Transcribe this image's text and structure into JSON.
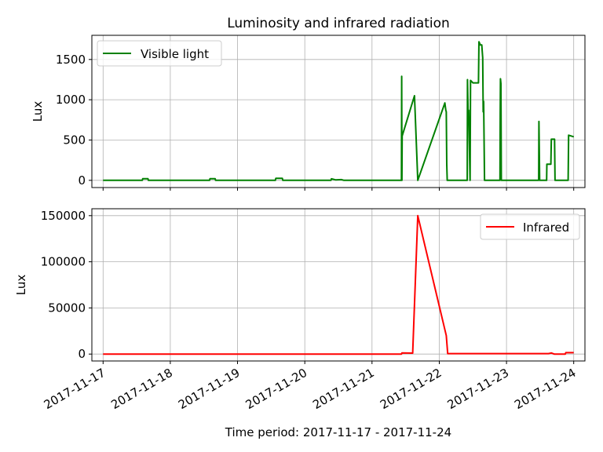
{
  "chart_data": [
    {
      "type": "line",
      "title": "Luminosity and infrared radiation",
      "ylabel": "Lux",
      "ylim": [
        -90,
        1800
      ],
      "yticks": [
        0,
        500,
        1000,
        1500
      ],
      "grid": true,
      "legend_position": "top-left",
      "series": [
        {
          "name": "Visible light",
          "color": "#008000",
          "points": [
            [
              "2017-11-17 00:00",
              0
            ],
            [
              "2017-11-17 14:00",
              0
            ],
            [
              "2017-11-17 14:10",
              20
            ],
            [
              "2017-11-17 16:00",
              20
            ],
            [
              "2017-11-17 16:10",
              0
            ],
            [
              "2017-11-18 14:00",
              0
            ],
            [
              "2017-11-18 14:10",
              20
            ],
            [
              "2017-11-18 16:00",
              20
            ],
            [
              "2017-11-18 16:10",
              0
            ],
            [
              "2017-11-19 13:30",
              0
            ],
            [
              "2017-11-19 13:40",
              25
            ],
            [
              "2017-11-19 16:00",
              25
            ],
            [
              "2017-11-19 16:10",
              0
            ],
            [
              "2017-11-20 09:20",
              0
            ],
            [
              "2017-11-20 09:30",
              18
            ],
            [
              "2017-11-20 11:00",
              5
            ],
            [
              "2017-11-20 13:00",
              8
            ],
            [
              "2017-11-20 14:00",
              0
            ],
            [
              "2017-11-21 10:30",
              0
            ],
            [
              "2017-11-21 10:35",
              1290
            ],
            [
              "2017-11-21 10:40",
              0
            ],
            [
              "2017-11-21 10:45",
              550
            ],
            [
              "2017-11-21 15:10",
              1050
            ],
            [
              "2017-11-21 16:20",
              0
            ],
            [
              "2017-11-22 02:00",
              960
            ],
            [
              "2017-11-22 02:20",
              870
            ],
            [
              "2017-11-22 02:30",
              850
            ],
            [
              "2017-11-22 02:40",
              200
            ],
            [
              "2017-11-22 02:50",
              0
            ],
            [
              "2017-11-22 10:00",
              0
            ],
            [
              "2017-11-22 10:05",
              1250
            ],
            [
              "2017-11-22 10:20",
              780
            ],
            [
              "2017-11-22 10:30",
              870
            ],
            [
              "2017-11-22 11:00",
              0
            ],
            [
              "2017-11-22 11:10",
              1240
            ],
            [
              "2017-11-22 12:00",
              1210
            ],
            [
              "2017-11-22 14:00",
              1210
            ],
            [
              "2017-11-22 14:10",
              1720
            ],
            [
              "2017-11-22 14:40",
              1680
            ],
            [
              "2017-11-22 15:10",
              1680
            ],
            [
              "2017-11-22 15:30",
              1520
            ],
            [
              "2017-11-22 15:40",
              850
            ],
            [
              "2017-11-22 15:50",
              980
            ],
            [
              "2017-11-22 16:10",
              0
            ],
            [
              "2017-11-22 21:40",
              0
            ],
            [
              "2017-11-22 21:45",
              830
            ],
            [
              "2017-11-22 21:50",
              1260
            ],
            [
              "2017-11-22 22:00",
              1200
            ],
            [
              "2017-11-22 22:10",
              0
            ],
            [
              "2017-11-23 11:30",
              0
            ],
            [
              "2017-11-23 11:35",
              730
            ],
            [
              "2017-11-23 11:50",
              0
            ],
            [
              "2017-11-23 14:20",
              0
            ],
            [
              "2017-11-23 14:25",
              200
            ],
            [
              "2017-11-23 15:50",
              200
            ],
            [
              "2017-11-23 16:00",
              510
            ],
            [
              "2017-11-23 17:10",
              510
            ],
            [
              "2017-11-23 17:20",
              0
            ],
            [
              "2017-11-23 22:00",
              0
            ],
            [
              "2017-11-23 22:10",
              560
            ],
            [
              "2017-11-24 00:00",
              540
            ]
          ]
        }
      ]
    },
    {
      "type": "line",
      "ylabel": "Lux",
      "ylim": [
        -7500,
        157500
      ],
      "yticks": [
        0,
        50000,
        100000,
        150000
      ],
      "grid": true,
      "legend_position": "top-right",
      "series": [
        {
          "name": "Infrared",
          "color": "#ff0000",
          "points": [
            [
              "2017-11-17 00:00",
              0
            ],
            [
              "2017-11-21 10:30",
              0
            ],
            [
              "2017-11-21 10:40",
              1200
            ],
            [
              "2017-11-21 14:30",
              1000
            ],
            [
              "2017-11-21 16:20",
              150000
            ],
            [
              "2017-11-22 02:30",
              20000
            ],
            [
              "2017-11-22 03:00",
              500
            ],
            [
              "2017-11-23 15:00",
              500
            ],
            [
              "2017-11-23 16:00",
              1200
            ],
            [
              "2017-11-23 17:00",
              0
            ],
            [
              "2017-11-23 21:00",
              0
            ],
            [
              "2017-11-23 21:10",
              1500
            ],
            [
              "2017-11-24 00:00",
              1500
            ]
          ]
        }
      ]
    }
  ],
  "xaxis": {
    "xlim": [
      "2017-11-16 20:00",
      "2017-11-24 04:00"
    ],
    "tick_labels": [
      "2017-11-17",
      "2017-11-18",
      "2017-11-19",
      "2017-11-20",
      "2017-11-21",
      "2017-11-22",
      "2017-11-23",
      "2017-11-24"
    ],
    "xlabel": "Time period: 2017-11-17 - 2017-11-24"
  }
}
